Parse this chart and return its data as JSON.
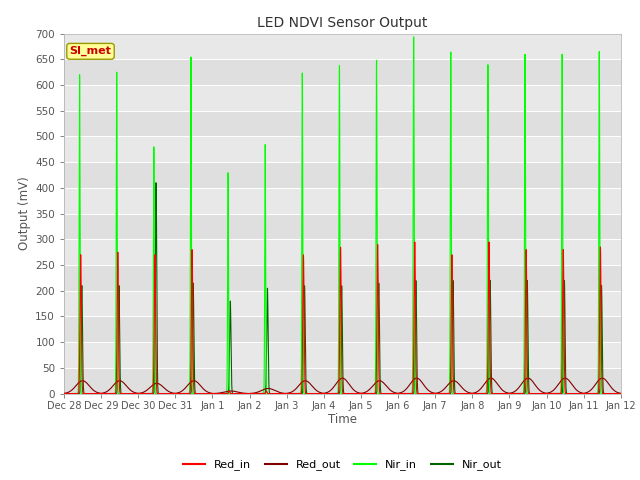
{
  "title": "LED NDVI Sensor Output",
  "xlabel": "Time",
  "ylabel": "Output (mV)",
  "ylim": [
    0,
    700
  ],
  "n_days": 15,
  "background_color": "#ffffff",
  "plot_bg_color": "#e8e8e8",
  "grid_color": "#ffffff",
  "annotation_text": "SI_met",
  "annotation_bg": "#ffff99",
  "annotation_border": "#999900",
  "tick_labels": [
    "Dec 28",
    "Dec 29",
    "Dec 30",
    "Dec 31",
    "Jan 1",
    "Jan 2",
    "Jan 3",
    "Jan 4",
    "Jan 5",
    "Jan 6",
    "Jan 7",
    "Jan 8",
    "Jan 9",
    "Jan 10",
    "Jan 11",
    "Jan 12"
  ],
  "colors": {
    "Red_in": "#ff0000",
    "Red_out": "#800000",
    "Nir_in": "#00ff00",
    "Nir_out": "#006400"
  },
  "daily_peaks": {
    "Red_in": [
      270,
      275,
      270,
      280,
      5,
      5,
      270,
      285,
      290,
      295,
      270,
      295,
      280,
      280,
      285
    ],
    "Red_out": [
      25,
      25,
      20,
      25,
      5,
      10,
      25,
      30,
      25,
      30,
      25,
      30,
      30,
      30,
      30
    ],
    "Nir_in": [
      620,
      625,
      480,
      655,
      430,
      485,
      625,
      640,
      650,
      695,
      665,
      640,
      660,
      660,
      665
    ],
    "Nir_out": [
      210,
      210,
      410,
      215,
      180,
      205,
      210,
      210,
      215,
      220,
      220,
      220,
      220,
      220,
      210
    ]
  },
  "spike_offsets": {
    "Red_in": 0.45,
    "Red_out": 0.5,
    "Nir_in": 0.42,
    "Nir_out": 0.48
  },
  "spike_widths": {
    "Red_in": 0.018,
    "Red_out": 0.022,
    "Nir_in": 0.012,
    "Nir_out": 0.018
  },
  "hump_widths": {
    "Red_out": 0.18
  }
}
